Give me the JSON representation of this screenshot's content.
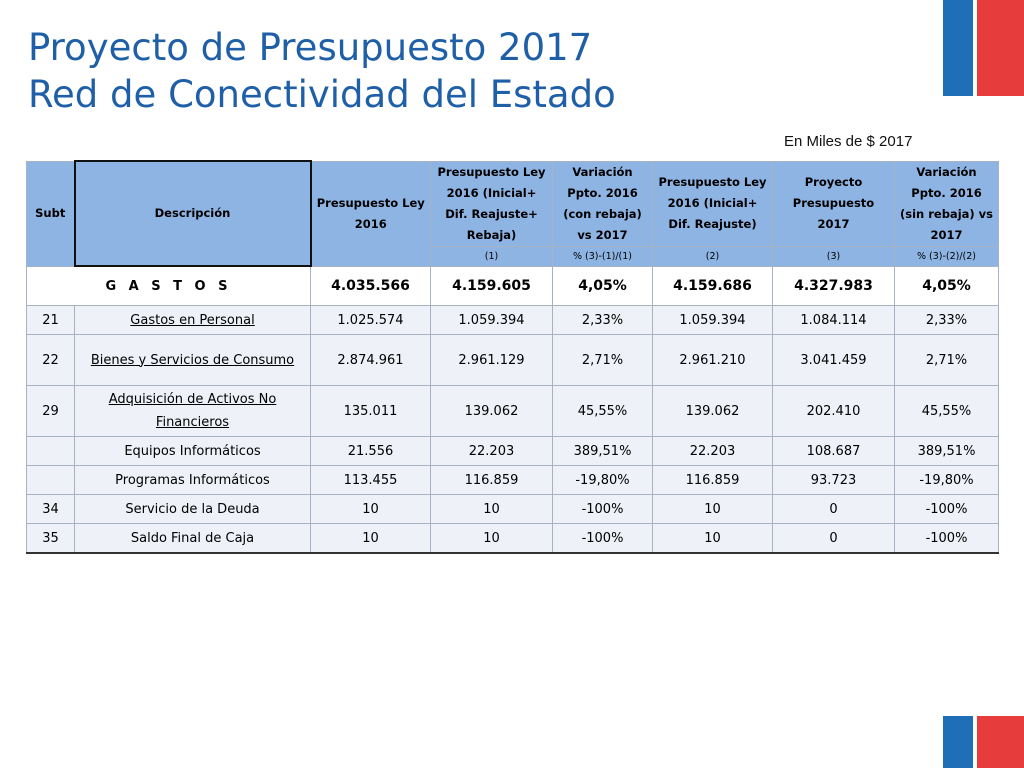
{
  "title_line1": "Proyecto de Presupuesto 2017",
  "title_line2": "Red de Conectividad del Estado",
  "unit_note": "En Miles de $ 2017",
  "colors": {
    "title": "#1f5fa8",
    "header_bg": "#8eb4e3",
    "row_bg": "#eef1f7",
    "flag_blue": "#1f6fb8",
    "flag_red": "#e63c3c"
  },
  "headers": {
    "subt": "Subt",
    "descripcion": "Descripción",
    "col1": "Presupuesto Ley 2016",
    "col2": "Presupuesto Ley 2016 (Inicial+ Dif. Reajuste+ Rebaja)",
    "col3": "Variación Ppto. 2016 (con rebaja) vs 2017",
    "col4": "Presupuesto Ley 2016 (Inicial+ Dif. Reajuste)",
    "col5": "Proyecto Presupuesto 2017",
    "col6": "Variación Ppto. 2016 (sin rebaja) vs 2017",
    "sub2": "(1)",
    "sub3": "% (3)-(1)/(1)",
    "sub4": "(2)",
    "sub5": "(3)",
    "sub6": "% (3)-(2)/(2)"
  },
  "total": {
    "label": "G A S T O S",
    "c1": "4.035.566",
    "c2": "4.159.605",
    "c3": "4,05%",
    "c4": "4.159.686",
    "c5": "4.327.983",
    "c6": "4,05%"
  },
  "rows": [
    {
      "subt": "21",
      "desc": "Gastos en Personal",
      "c1": "1.025.574",
      "c2": "1.059.394",
      "c3": "2,33%",
      "c4": "1.059.394",
      "c5": "1.084.114",
      "c6": "2,33%"
    },
    {
      "subt": "22",
      "desc": "Bienes y Servicios de Consumo",
      "c1": "2.874.961",
      "c2": "2.961.129",
      "c3": "2,71%",
      "c4": "2.961.210",
      "c5": "3.041.459",
      "c6": "2,71%"
    },
    {
      "subt": "29",
      "desc": "Adquisición de Activos No Financieros",
      "c1": "135.011",
      "c2": "139.062",
      "c3": "45,55%",
      "c4": "139.062",
      "c5": "202.410",
      "c6": "45,55%"
    },
    {
      "subt": "",
      "desc": "Equipos Informáticos",
      "c1": "21.556",
      "c2": "22.203",
      "c3": "389,51%",
      "c4": "22.203",
      "c5": "108.687",
      "c6": "389,51%"
    },
    {
      "subt": "",
      "desc": "Programas Informáticos",
      "c1": "113.455",
      "c2": "116.859",
      "c3": "-19,80%",
      "c4": "116.859",
      "c5": "93.723",
      "c6": "-19,80%"
    },
    {
      "subt": "34",
      "desc": "Servicio de la Deuda",
      "c1": "10",
      "c2": "10",
      "c3": "-100%",
      "c4": "10",
      "c5": "0",
      "c6": "-100%"
    },
    {
      "subt": "35",
      "desc": "Saldo Final de Caja",
      "c1": "10",
      "c2": "10",
      "c3": "-100%",
      "c4": "10",
      "c5": "0",
      "c6": "-100%"
    }
  ]
}
